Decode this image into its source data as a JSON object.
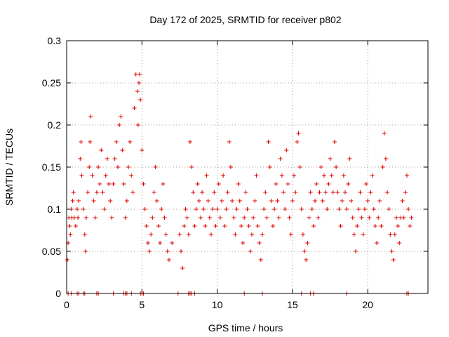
{
  "chart_data": {
    "type": "scatter",
    "title": "Day 172 of 2025, SRMTID for receiver p802",
    "xlabel": "GPS time / hours",
    "ylabel": "SRMTID / TECUs",
    "xlim": [
      0,
      24
    ],
    "ylim": [
      0,
      0.3
    ],
    "x_ticks": [
      0,
      5,
      10,
      15,
      20
    ],
    "x_tick_labels": [
      "0",
      "5",
      "10",
      "15",
      "20"
    ],
    "y_ticks": [
      0,
      0.05,
      0.1,
      0.15,
      0.2,
      0.25,
      0.3
    ],
    "y_tick_labels": [
      "0",
      "0.05",
      "0.1",
      "0.15",
      "0.2",
      "0.25",
      "0.3"
    ],
    "grid": true,
    "marker": "+",
    "color": "#e00000",
    "series": [
      {
        "name": "SRMTID",
        "points": [
          [
            0.05,
            0.04
          ],
          [
            0.1,
            0.06
          ],
          [
            0.15,
            0.09
          ],
          [
            0.2,
            0.08
          ],
          [
            0.25,
            0.07
          ],
          [
            0.3,
            0.1
          ],
          [
            0.35,
            0.09
          ],
          [
            0.4,
            0.11
          ],
          [
            0.45,
            0.12
          ],
          [
            0.5,
            0.09
          ],
          [
            0.6,
            0.08
          ],
          [
            0.7,
            0.1
          ],
          [
            0.75,
            0.09
          ],
          [
            0.8,
            0.11
          ],
          [
            0.9,
            0.16
          ],
          [
            0.95,
            0.18
          ],
          [
            1.0,
            0.14
          ],
          [
            1.1,
            0.1
          ],
          [
            1.2,
            0.07
          ],
          [
            1.25,
            0.05
          ],
          [
            1.3,
            0.09
          ],
          [
            1.4,
            0.12
          ],
          [
            1.5,
            0.15
          ],
          [
            1.55,
            0.18
          ],
          [
            1.6,
            0.21
          ],
          [
            1.7,
            0.14
          ],
          [
            1.8,
            0.11
          ],
          [
            1.9,
            0.09
          ],
          [
            2.0,
            0.12
          ],
          [
            2.1,
            0.15
          ],
          [
            2.2,
            0.13
          ],
          [
            2.3,
            0.17
          ],
          [
            2.4,
            0.12
          ],
          [
            2.5,
            0.1
          ],
          [
            2.6,
            0.14
          ],
          [
            2.7,
            0.16
          ],
          [
            2.8,
            0.13
          ],
          [
            2.9,
            0.11
          ],
          [
            3.0,
            0.09
          ],
          [
            3.1,
            0.13
          ],
          [
            3.2,
            0.16
          ],
          [
            3.3,
            0.18
          ],
          [
            3.4,
            0.15
          ],
          [
            3.5,
            0.2
          ],
          [
            3.6,
            0.21
          ],
          [
            3.7,
            0.17
          ],
          [
            3.8,
            0.13
          ],
          [
            3.9,
            0.09
          ],
          [
            4.0,
            0.11
          ],
          [
            4.1,
            0.15
          ],
          [
            4.2,
            0.18
          ],
          [
            4.3,
            0.14
          ],
          [
            4.4,
            0.12
          ],
          [
            4.5,
            0.22
          ],
          [
            4.6,
            0.26
          ],
          [
            4.7,
            0.24
          ],
          [
            4.75,
            0.2
          ],
          [
            4.8,
            0.25
          ],
          [
            4.85,
            0.26
          ],
          [
            4.9,
            0.23
          ],
          [
            5.0,
            0.17
          ],
          [
            5.1,
            0.13
          ],
          [
            5.2,
            0.1
          ],
          [
            5.3,
            0.08
          ],
          [
            5.4,
            0.06
          ],
          [
            5.5,
            0.05
          ],
          [
            5.6,
            0.07
          ],
          [
            5.7,
            0.09
          ],
          [
            5.8,
            0.12
          ],
          [
            5.9,
            0.15
          ],
          [
            6.0,
            0.11
          ],
          [
            6.1,
            0.08
          ],
          [
            6.2,
            0.06
          ],
          [
            6.3,
            0.1
          ],
          [
            6.4,
            0.13
          ],
          [
            6.5,
            0.09
          ],
          [
            6.6,
            0.07
          ],
          [
            6.7,
            0.05
          ],
          [
            6.8,
            0.04
          ],
          [
            7.0,
            0.06
          ],
          [
            7.5,
            0.07
          ],
          [
            7.6,
            0.05
          ],
          [
            7.7,
            0.03
          ],
          [
            7.8,
            0.08
          ],
          [
            7.9,
            0.1
          ],
          [
            8.0,
            0.09
          ],
          [
            8.1,
            0.07
          ],
          [
            8.2,
            0.18
          ],
          [
            8.3,
            0.15
          ],
          [
            8.4,
            0.12
          ],
          [
            8.5,
            0.08
          ],
          [
            8.6,
            0.1
          ],
          [
            8.7,
            0.13
          ],
          [
            8.8,
            0.11
          ],
          [
            8.9,
            0.09
          ],
          [
            9.0,
            0.12
          ],
          [
            9.1,
            0.1
          ],
          [
            9.2,
            0.08
          ],
          [
            9.3,
            0.14
          ],
          [
            9.4,
            0.11
          ],
          [
            9.5,
            0.09
          ],
          [
            9.6,
            0.07
          ],
          [
            9.7,
            0.1
          ],
          [
            9.8,
            0.12
          ],
          [
            9.9,
            0.08
          ],
          [
            10.0,
            0.1
          ],
          [
            10.1,
            0.13
          ],
          [
            10.2,
            0.09
          ],
          [
            10.3,
            0.11
          ],
          [
            10.4,
            0.14
          ],
          [
            10.5,
            0.08
          ],
          [
            10.6,
            0.1
          ],
          [
            10.7,
            0.12
          ],
          [
            10.8,
            0.18
          ],
          [
            10.9,
            0.15
          ],
          [
            11.0,
            0.11
          ],
          [
            11.1,
            0.09
          ],
          [
            11.2,
            0.07
          ],
          [
            11.3,
            0.1
          ],
          [
            11.4,
            0.13
          ],
          [
            11.5,
            0.11
          ],
          [
            11.6,
            0.08
          ],
          [
            11.7,
            0.06
          ],
          [
            11.8,
            0.09
          ],
          [
            11.9,
            0.12
          ],
          [
            12.0,
            0.1
          ],
          [
            12.1,
            0.08
          ],
          [
            12.2,
            0.05
          ],
          [
            12.3,
            0.07
          ],
          [
            12.4,
            0.09
          ],
          [
            12.5,
            0.11
          ],
          [
            12.6,
            0.14
          ],
          [
            12.7,
            0.08
          ],
          [
            12.8,
            0.06
          ],
          [
            12.9,
            0.04
          ],
          [
            13.0,
            0.07
          ],
          [
            13.1,
            0.1
          ],
          [
            13.2,
            0.12
          ],
          [
            13.3,
            0.09
          ],
          [
            13.4,
            0.18
          ],
          [
            13.5,
            0.15
          ],
          [
            13.6,
            0.11
          ],
          [
            13.7,
            0.08
          ],
          [
            13.8,
            0.1
          ],
          [
            13.9,
            0.13
          ],
          [
            14.0,
            0.11
          ],
          [
            14.1,
            0.09
          ],
          [
            14.2,
            0.16
          ],
          [
            14.3,
            0.14
          ],
          [
            14.4,
            0.12
          ],
          [
            14.5,
            0.1
          ],
          [
            14.6,
            0.17
          ],
          [
            14.7,
            0.13
          ],
          [
            14.8,
            0.09
          ],
          [
            14.9,
            0.07
          ],
          [
            15.0,
            0.11
          ],
          [
            15.1,
            0.14
          ],
          [
            15.2,
            0.12
          ],
          [
            15.3,
            0.18
          ],
          [
            15.4,
            0.19
          ],
          [
            15.5,
            0.15
          ],
          [
            15.6,
            0.1
          ],
          [
            15.7,
            0.07
          ],
          [
            15.8,
            0.05
          ],
          [
            15.9,
            0.04
          ],
          [
            16.0,
            0.06
          ],
          [
            16.1,
            0.09
          ],
          [
            16.2,
            0.12
          ],
          [
            16.3,
            0.1
          ],
          [
            16.4,
            0.08
          ],
          [
            16.5,
            0.11
          ],
          [
            16.6,
            0.13
          ],
          [
            16.7,
            0.09
          ],
          [
            16.8,
            0.12
          ],
          [
            16.9,
            0.15
          ],
          [
            17.0,
            0.11
          ],
          [
            17.1,
            0.14
          ],
          [
            17.2,
            0.12
          ],
          [
            17.3,
            0.1
          ],
          [
            17.4,
            0.13
          ],
          [
            17.5,
            0.16
          ],
          [
            17.6,
            0.14
          ],
          [
            17.7,
            0.12
          ],
          [
            17.8,
            0.18
          ],
          [
            17.9,
            0.15
          ],
          [
            18.0,
            0.12
          ],
          [
            18.1,
            0.1
          ],
          [
            18.2,
            0.08
          ],
          [
            18.3,
            0.11
          ],
          [
            18.4,
            0.14
          ],
          [
            18.5,
            0.12
          ],
          [
            18.6,
            0.1
          ],
          [
            18.7,
            0.13
          ],
          [
            18.8,
            0.16
          ],
          [
            18.9,
            0.11
          ],
          [
            19.0,
            0.09
          ],
          [
            19.1,
            0.07
          ],
          [
            19.2,
            0.05
          ],
          [
            19.3,
            0.08
          ],
          [
            19.4,
            0.1
          ],
          [
            19.5,
            0.12
          ],
          [
            19.6,
            0.09
          ],
          [
            19.7,
            0.07
          ],
          [
            19.8,
            0.1
          ],
          [
            19.9,
            0.13
          ],
          [
            20.0,
            0.11
          ],
          [
            20.1,
            0.09
          ],
          [
            20.2,
            0.12
          ],
          [
            20.3,
            0.14
          ],
          [
            20.4,
            0.1
          ],
          [
            20.5,
            0.08
          ],
          [
            20.6,
            0.06
          ],
          [
            20.7,
            0.09
          ],
          [
            20.8,
            0.11
          ],
          [
            20.9,
            0.08
          ],
          [
            21.0,
            0.15
          ],
          [
            21.1,
            0.19
          ],
          [
            21.2,
            0.16
          ],
          [
            21.3,
            0.12
          ],
          [
            21.4,
            0.1
          ],
          [
            21.5,
            0.07
          ],
          [
            21.6,
            0.05
          ],
          [
            21.7,
            0.04
          ],
          [
            21.8,
            0.07
          ],
          [
            21.9,
            0.09
          ],
          [
            22.0,
            0.08
          ],
          [
            22.1,
            0.06
          ],
          [
            22.2,
            0.09
          ],
          [
            22.3,
            0.11
          ],
          [
            22.4,
            0.09
          ],
          [
            22.5,
            0.12
          ],
          [
            22.6,
            0.14
          ],
          [
            22.7,
            0.1
          ],
          [
            22.8,
            0.08
          ],
          [
            22.9,
            0.09
          ]
        ],
        "zero_markers_x": [
          0.1,
          0.3,
          0.7,
          0.8,
          1.1,
          1.2,
          2.0,
          2.1,
          3.1,
          3.8,
          3.9,
          4.0,
          4.3,
          4.9,
          5.0,
          5.1,
          7.4,
          8.1,
          8.2,
          8.3,
          8.5,
          11.8,
          13.0,
          15.6,
          16.2,
          16.4,
          18.6,
          22.6,
          22.7
        ]
      }
    ]
  }
}
